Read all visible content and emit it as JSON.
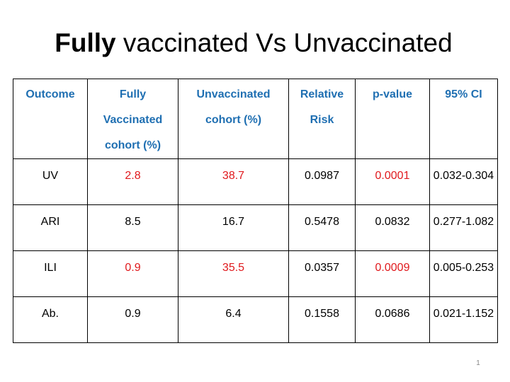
{
  "title": {
    "bold": "Fully",
    "rest": " vaccinated Vs Unvaccinated"
  },
  "table": {
    "headers": [
      "Outcome",
      "Fully Vaccinated cohort (%)",
      "Unvaccinated cohort (%)",
      "Relative Risk",
      "p-value",
      "95% CI"
    ],
    "rows": [
      [
        "UV",
        "2.8",
        "38.7",
        "0.0987",
        "0.0001",
        "0.032-0.304"
      ],
      [
        "ARI",
        "8.5",
        "16.7",
        "0.5478",
        "0.0832",
        "0.277-1.082"
      ],
      [
        "ILI",
        "0.9",
        "35.5",
        "0.0357",
        "0.0009",
        "0.005-0.253"
      ],
      [
        "Ab.",
        "0.9",
        "6.4",
        "0.1558",
        "0.0686",
        "0.021-1.152"
      ]
    ]
  },
  "colors": {
    "header": "#1f6fb2",
    "highlight": "#e0191d",
    "page_number": "#888888"
  },
  "page_number": "1"
}
